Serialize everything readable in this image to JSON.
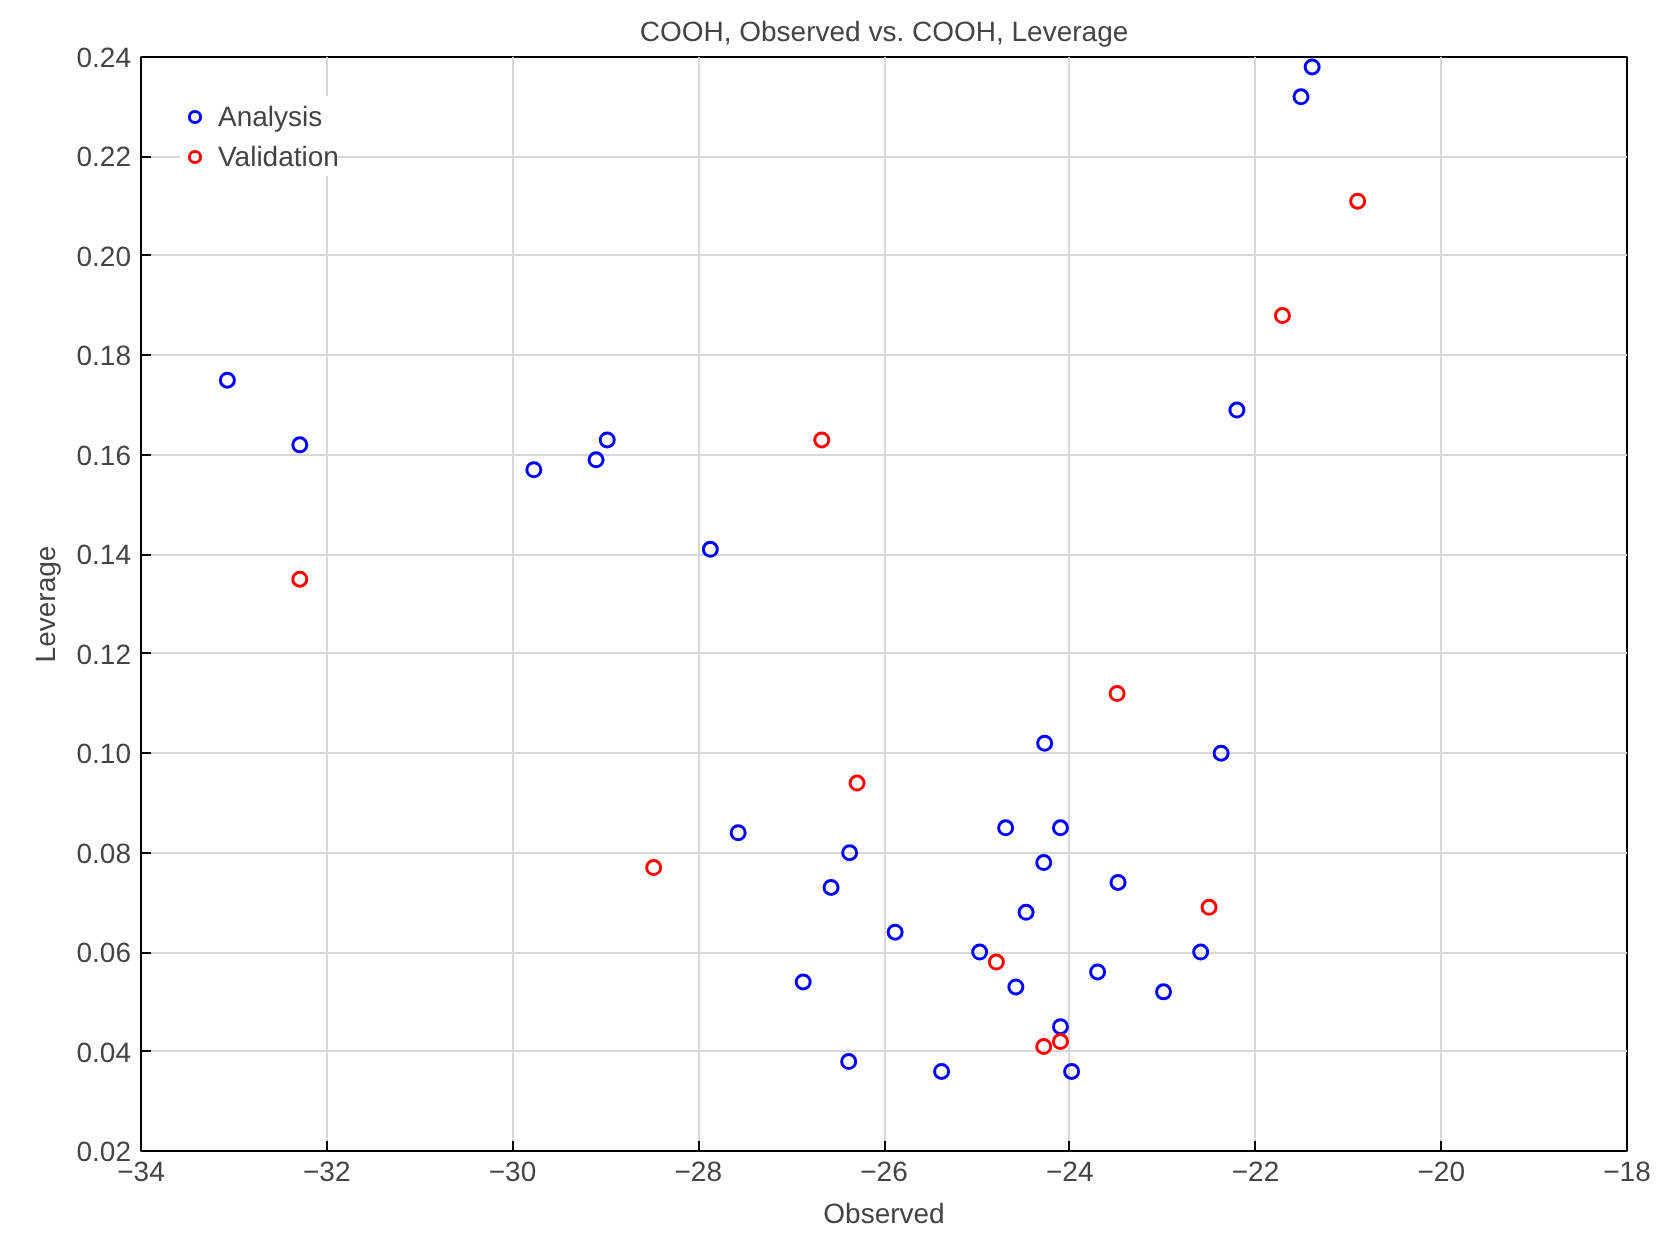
{
  "chart_data": {
    "type": "scatter",
    "title": "COOH, Observed vs. COOH, Leverage",
    "xlabel": "Observed",
    "ylabel": "Leverage",
    "xlim": [
      -34,
      -18
    ],
    "xticks": [
      -34,
      -32,
      -30,
      -28,
      -26,
      -24,
      -22,
      -20,
      -18
    ],
    "ylim": [
      0.02,
      0.24
    ],
    "yticks": [
      {
        "value": 0.02,
        "label": "0.02"
      },
      {
        "value": 0.04,
        "label": "0.04"
      },
      {
        "value": 0.06,
        "label": "0.06"
      },
      {
        "value": 0.08,
        "label": "0.08"
      },
      {
        "value": 0.1,
        "label": "0.10"
      },
      {
        "value": 0.12,
        "label": "0.12"
      },
      {
        "value": 0.14,
        "label": "0.14"
      },
      {
        "value": 0.16,
        "label": "0.16"
      },
      {
        "value": 0.18,
        "label": "0.18"
      },
      {
        "value": 0.2,
        "label": "0.20"
      },
      {
        "value": 0.22,
        "label": "0.22"
      },
      {
        "value": 0.24,
        "label": "0.24"
      }
    ],
    "grid": true,
    "legend": "top left",
    "marker": "circle",
    "series": [
      {
        "name": "Analysis",
        "color": "#0000ff",
        "x": [
          -33.07,
          -32.29,
          -29.77,
          -29.1,
          -28.98,
          -27.87,
          -21.39,
          -21.51,
          -22.2,
          -27.57,
          -26.37,
          -26.57,
          -26.87,
          -26.38,
          -24.27,
          -22.37,
          -24.69,
          -24.1,
          -24.28,
          -23.48,
          -24.47,
          -25.88,
          -24.97,
          -22.59,
          -23.7,
          -24.58,
          -22.99,
          -24.1,
          -25.38,
          -23.98
        ],
        "values": [
          0.175,
          0.162,
          0.157,
          0.159,
          0.163,
          0.141,
          0.238,
          0.232,
          0.169,
          0.084,
          0.08,
          0.073,
          0.054,
          0.038,
          0.102,
          0.1,
          0.085,
          0.085,
          0.078,
          0.074,
          0.068,
          0.064,
          0.06,
          0.06,
          0.056,
          0.053,
          0.052,
          0.045,
          0.036,
          0.036
        ]
      },
      {
        "name": "Validation",
        "color": "#ff0000",
        "x": [
          -32.29,
          -26.67,
          -20.9,
          -21.71,
          -28.48,
          -26.29,
          -23.49,
          -22.5,
          -24.79,
          -24.1,
          -24.28
        ],
        "values": [
          0.135,
          0.163,
          0.211,
          0.188,
          0.077,
          0.094,
          0.112,
          0.069,
          0.058,
          0.042,
          0.041
        ]
      }
    ]
  }
}
